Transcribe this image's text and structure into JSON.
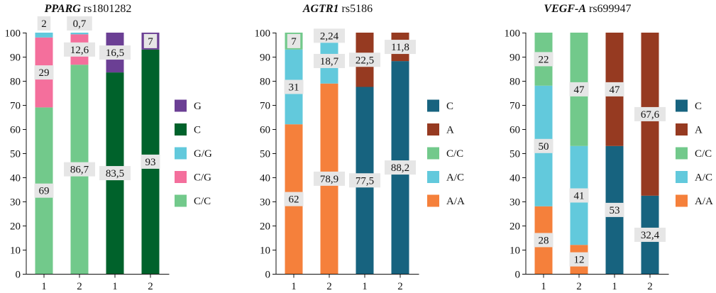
{
  "chart_data": [
    {
      "type": "bar",
      "stacked": true,
      "title_gene": "PPARG",
      "title_snp": "rs1801282",
      "categories": [
        "1",
        "2",
        "1",
        "2"
      ],
      "ylim": [
        0,
        100
      ],
      "yticks": [
        "0",
        "10",
        "20",
        "30",
        "40",
        "50",
        "60",
        "70",
        "80",
        "90",
        "100"
      ],
      "grid": false,
      "legend_position": "right",
      "series": [
        {
          "name": "C/C",
          "color": "#72c98b",
          "values": [
            69,
            86.7,
            0,
            0
          ],
          "labels": [
            "69",
            "86,7",
            "",
            ""
          ]
        },
        {
          "name": "C/G",
          "color": "#f46f9c",
          "values": [
            29,
            12.6,
            0,
            0
          ],
          "labels": [
            "29",
            "12,6",
            "",
            ""
          ]
        },
        {
          "name": "G/G",
          "color": "#62c9dc",
          "values": [
            2,
            0.7,
            0,
            0
          ],
          "labels": [
            "2",
            "0,7",
            "",
            ""
          ]
        },
        {
          "name": "C",
          "color": "#00622b",
          "values": [
            0,
            0,
            83.5,
            93
          ],
          "labels": [
            "",
            "",
            "83,5",
            "93"
          ]
        },
        {
          "name": "G",
          "color": "#6b3f94",
          "values": [
            0,
            0,
            16.5,
            7
          ],
          "labels": [
            "",
            "",
            "16,5",
            "7"
          ]
        }
      ],
      "legend_order": [
        "G",
        "C",
        "G/G",
        "C/G",
        "C/C"
      ]
    },
    {
      "type": "bar",
      "stacked": true,
      "title_gene": "AGTR1",
      "title_snp": "rs5186",
      "categories": [
        "1",
        "2",
        "1",
        "2"
      ],
      "ylim": [
        0,
        100
      ],
      "yticks": [
        "0",
        "10",
        "20",
        "30",
        "40",
        "50",
        "60",
        "70",
        "80",
        "90",
        "100"
      ],
      "grid": false,
      "legend_position": "right",
      "series": [
        {
          "name": "A/A",
          "color": "#f5803b",
          "values": [
            62,
            78.9,
            0,
            0
          ],
          "labels": [
            "62",
            "78,9",
            "",
            ""
          ]
        },
        {
          "name": "A/C",
          "color": "#62c9dc",
          "values": [
            31,
            18.7,
            0,
            0
          ],
          "labels": [
            "31",
            "18,7",
            "",
            ""
          ]
        },
        {
          "name": "C/C",
          "color": "#72c98b",
          "values": [
            7,
            2.24,
            0,
            0
          ],
          "labels": [
            "7",
            "2,24",
            "",
            ""
          ]
        },
        {
          "name": "C",
          "color": "#17637f",
          "values": [
            0,
            0,
            77.5,
            88.2
          ],
          "labels": [
            "",
            "",
            "77,5",
            "88,2"
          ]
        },
        {
          "name": "A",
          "color": "#963a21",
          "values": [
            0,
            0,
            22.5,
            11.8
          ],
          "labels": [
            "",
            "",
            "22,5",
            "11,8"
          ]
        }
      ],
      "legend_order": [
        "C",
        "A",
        "C/C",
        "A/C",
        "A/A"
      ]
    },
    {
      "type": "bar",
      "stacked": true,
      "title_gene": "VEGF-A",
      "title_snp": "rs699947",
      "categories": [
        "1",
        "2",
        "1",
        "2"
      ],
      "ylim": [
        0,
        100
      ],
      "yticks": [
        "0",
        "10",
        "20",
        "30",
        "40",
        "50",
        "60",
        "70",
        "80",
        "90",
        "100"
      ],
      "grid": false,
      "legend_position": "right",
      "series": [
        {
          "name": "A/A",
          "color": "#f5803b",
          "values": [
            28,
            12,
            0,
            0
          ],
          "labels": [
            "28",
            "12",
            "",
            ""
          ]
        },
        {
          "name": "A/C",
          "color": "#62c9dc",
          "values": [
            50,
            41,
            0,
            0
          ],
          "labels": [
            "50",
            "41",
            "",
            ""
          ]
        },
        {
          "name": "C/C",
          "color": "#72c98b",
          "values": [
            22,
            47,
            0,
            0
          ],
          "labels": [
            "22",
            "47",
            "",
            ""
          ]
        },
        {
          "name": "C",
          "color": "#17637f",
          "values": [
            0,
            0,
            53,
            32.4
          ],
          "labels": [
            "",
            "",
            "53",
            "32,4"
          ]
        },
        {
          "name": "A",
          "color": "#963a21",
          "values": [
            0,
            0,
            47,
            67.6
          ],
          "labels": [
            "",
            "",
            "47",
            "67,6"
          ]
        }
      ],
      "legend_order": [
        "C",
        "A",
        "C/C",
        "A/C",
        "A/A"
      ]
    }
  ]
}
